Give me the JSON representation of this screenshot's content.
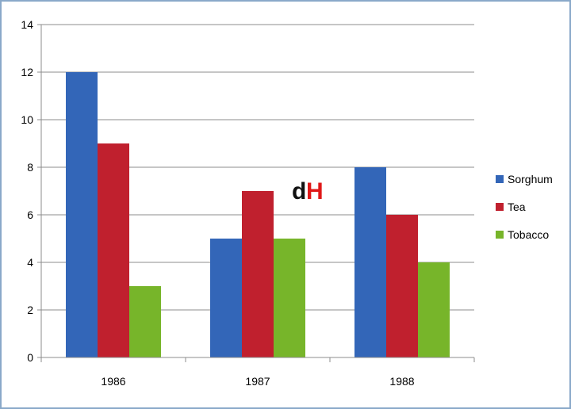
{
  "chart_data": {
    "type": "bar",
    "categories": [
      "1986",
      "1987",
      "1988"
    ],
    "series": [
      {
        "name": "Sorghum",
        "values": [
          12,
          5,
          8
        ],
        "color": "#3366b8"
      },
      {
        "name": "Tea",
        "values": [
          9,
          7,
          6
        ],
        "color": "#c0202e"
      },
      {
        "name": "Tobacco",
        "values": [
          3,
          5,
          4
        ],
        "color": "#77b52a"
      }
    ],
    "ylim": [
      0,
      14
    ],
    "yticks": [
      "0",
      "2",
      "4",
      "6",
      "8",
      "10",
      "12",
      "14"
    ],
    "grid": true,
    "legend_position": "right"
  },
  "watermark": {
    "text_d": "d",
    "text_h": "H"
  }
}
